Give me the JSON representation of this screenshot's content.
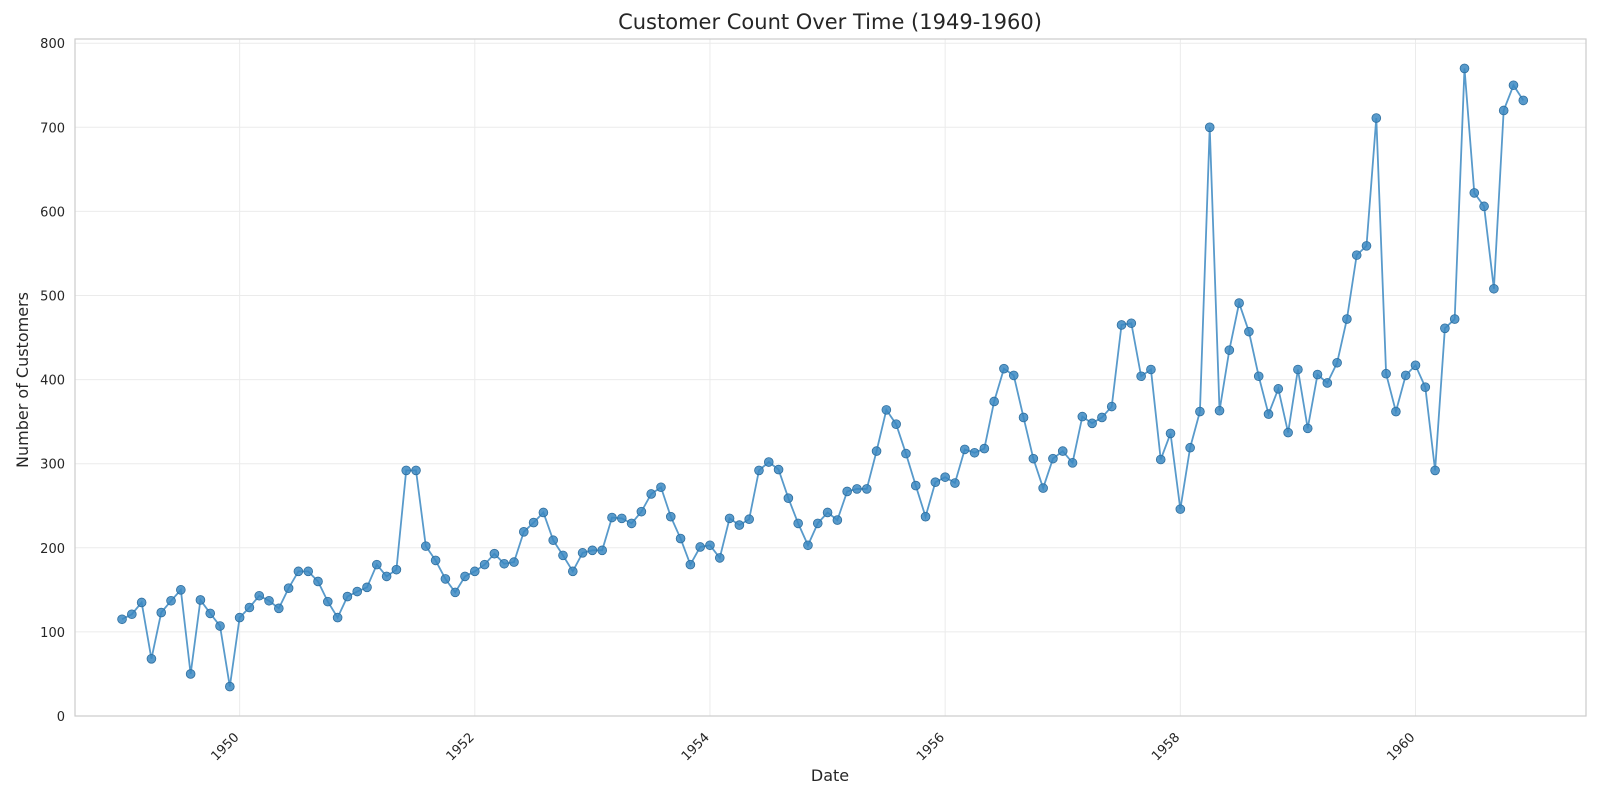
{
  "chart_data": {
    "type": "line",
    "title": "Customer Count Over Time (1949-1960)",
    "xlabel": "Date",
    "ylabel": "Number of Customers",
    "x_start": "1949-01",
    "x_step": "1 month",
    "xlim": [
      1948.6,
      1961.45
    ],
    "ylim": [
      0,
      805
    ],
    "x_ticks": [
      1950,
      1952,
      1954,
      1956,
      1958,
      1960
    ],
    "y_ticks": [
      0,
      100,
      200,
      300,
      400,
      500,
      600,
      700,
      800
    ],
    "grid": true,
    "legend": "none",
    "series_color": "#3b88c2",
    "series": [
      {
        "values": [
          115,
          121,
          135,
          68,
          123,
          137,
          150,
          50,
          138,
          122,
          107,
          35,
          117,
          129,
          143,
          137,
          128,
          152,
          172,
          172,
          160,
          136,
          117,
          142,
          148,
          153,
          180,
          166,
          174,
          292,
          292,
          202,
          185,
          163,
          147,
          166,
          172,
          180,
          193,
          181,
          183,
          219,
          230,
          242,
          209,
          191,
          172,
          194,
          197,
          197,
          236,
          235,
          229,
          243,
          264,
          272,
          237,
          211,
          180,
          201,
          203,
          188,
          235,
          227,
          234,
          292,
          302,
          293,
          259,
          229,
          203,
          229,
          242,
          233,
          267,
          270,
          270,
          315,
          364,
          347,
          312,
          274,
          237,
          278,
          284,
          277,
          317,
          313,
          318,
          374,
          413,
          405,
          355,
          306,
          271,
          306,
          315,
          301,
          356,
          348,
          355,
          368,
          465,
          467,
          404,
          412,
          305,
          336,
          246,
          319,
          362,
          700,
          363,
          435,
          491,
          457,
          404,
          359,
          389,
          337,
          412,
          342,
          406,
          396,
          420,
          472,
          548,
          559,
          711,
          407,
          362,
          405,
          417,
          391,
          292,
          461,
          472,
          770,
          622,
          606,
          508,
          720,
          750,
          732
        ]
      }
    ]
  }
}
